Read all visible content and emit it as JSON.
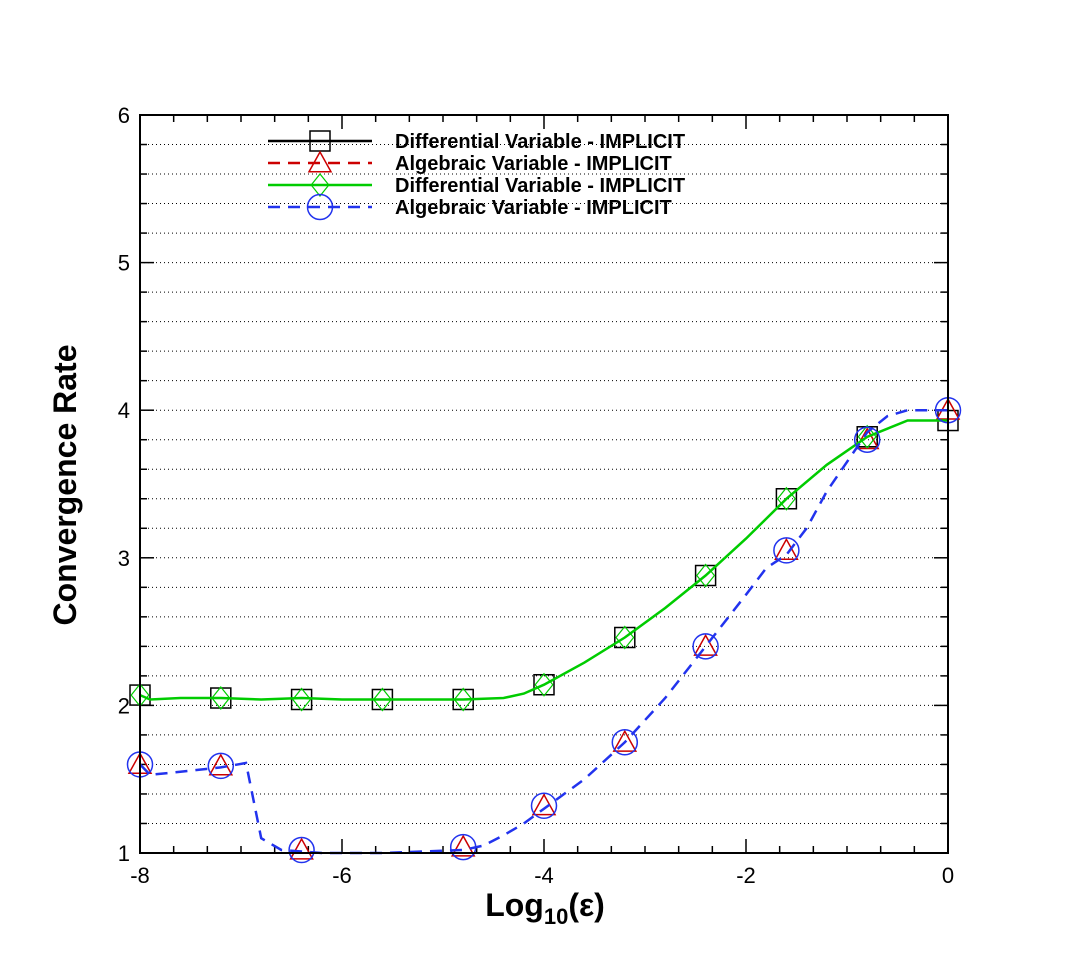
{
  "chart_data": {
    "type": "line",
    "xlabel": "Log",
    "xlabel_sub": "10",
    "xlabel_suffix": "(ε)",
    "ylabel": "Convergence Rate",
    "xlim": [
      -8,
      0
    ],
    "ylim": [
      1,
      6
    ],
    "x_major_ticks": [
      -8,
      -6,
      -4,
      -2,
      0
    ],
    "x_minor_step": 0.333333,
    "y_major_ticks": [
      1,
      2,
      3,
      4,
      5,
      6
    ],
    "y_minor_step": 0.2,
    "grid": "horizontal-dotted",
    "legend_position": "top-left",
    "series": [
      {
        "name": "Differential Variable - IMPLICIT",
        "color": "#000000",
        "dash": "solid",
        "marker": "square",
        "line": [],
        "markers": [
          [
            -8,
            2.07
          ],
          [
            -7.2,
            2.05
          ],
          [
            -6.4,
            2.04
          ],
          [
            -5.6,
            2.04
          ],
          [
            -4.8,
            2.04
          ],
          [
            -4,
            2.14
          ],
          [
            -3.2,
            2.46
          ],
          [
            -2.4,
            2.88
          ],
          [
            -1.6,
            3.4
          ],
          [
            -0.8,
            3.82
          ],
          [
            0,
            3.93
          ]
        ]
      },
      {
        "name": "Algebraic Variable - IMPLICIT",
        "color": "#cc0000",
        "dash": "dashed",
        "marker": "triangle",
        "line": [],
        "markers": [
          [
            -8,
            1.6
          ],
          [
            -7.2,
            1.59
          ],
          [
            -6.4,
            1.02
          ],
          [
            -4.8,
            1.04
          ],
          [
            -4,
            1.32
          ],
          [
            -3.2,
            1.75
          ],
          [
            -2.4,
            2.4
          ],
          [
            -1.6,
            3.05
          ],
          [
            -0.8,
            3.8
          ],
          [
            0,
            4
          ]
        ]
      },
      {
        "name": "Differential Variable - IMPLICIT",
        "color": "#00cc00",
        "dash": "solid",
        "marker": "diamond",
        "line": [
          [
            -8,
            2.07
          ],
          [
            -7.9,
            2.04
          ],
          [
            -7.6,
            2.05
          ],
          [
            -7.2,
            2.05
          ],
          [
            -6.8,
            2.04
          ],
          [
            -6.4,
            2.05
          ],
          [
            -6,
            2.04
          ],
          [
            -5.6,
            2.04
          ],
          [
            -5.2,
            2.04
          ],
          [
            -4.8,
            2.04
          ],
          [
            -4.4,
            2.05
          ],
          [
            -4.2,
            2.08
          ],
          [
            -4,
            2.14
          ],
          [
            -3.6,
            2.29
          ],
          [
            -3.2,
            2.46
          ],
          [
            -2.8,
            2.66
          ],
          [
            -2.4,
            2.88
          ],
          [
            -2,
            3.13
          ],
          [
            -1.6,
            3.4
          ],
          [
            -1.2,
            3.63
          ],
          [
            -0.8,
            3.82
          ],
          [
            -0.4,
            3.93
          ],
          [
            0,
            3.93
          ]
        ],
        "markers": [
          [
            -8,
            2.07
          ],
          [
            -7.2,
            2.05
          ],
          [
            -6.4,
            2.04
          ],
          [
            -5.6,
            2.04
          ],
          [
            -4.8,
            2.04
          ],
          [
            -4,
            2.14
          ],
          [
            -3.2,
            2.46
          ],
          [
            -2.4,
            2.88
          ],
          [
            -1.6,
            3.4
          ],
          [
            -0.8,
            3.82
          ]
        ]
      },
      {
        "name": "Algebraic Variable - IMPLICIT",
        "color": "#2233ee",
        "dash": "dashed",
        "marker": "circle",
        "line": [
          [
            -8,
            1.6
          ],
          [
            -7.9,
            1.53
          ],
          [
            -7.6,
            1.55
          ],
          [
            -7.2,
            1.58
          ],
          [
            -6.95,
            1.61
          ],
          [
            -6.8,
            1.1
          ],
          [
            -6.6,
            1.02
          ],
          [
            -6.4,
            1.01
          ],
          [
            -6.2,
            1.0
          ],
          [
            -5.6,
            1.0
          ],
          [
            -4.8,
            1.02
          ],
          [
            -4.6,
            1.05
          ],
          [
            -4.4,
            1.12
          ],
          [
            -4.2,
            1.2
          ],
          [
            -4,
            1.3
          ],
          [
            -3.6,
            1.5
          ],
          [
            -3.2,
            1.75
          ],
          [
            -2.8,
            2.05
          ],
          [
            -2.4,
            2.4
          ],
          [
            -2,
            2.75
          ],
          [
            -1.8,
            2.93
          ],
          [
            -1.6,
            3.02
          ],
          [
            -1.4,
            3.2
          ],
          [
            -1.2,
            3.45
          ],
          [
            -1,
            3.65
          ],
          [
            -0.8,
            3.85
          ],
          [
            -0.6,
            3.96
          ],
          [
            -0.4,
            4
          ],
          [
            0,
            4
          ]
        ],
        "markers": [
          [
            -8,
            1.6
          ],
          [
            -7.2,
            1.59
          ],
          [
            -6.4,
            1.02
          ],
          [
            -4.8,
            1.04
          ],
          [
            -4,
            1.32
          ],
          [
            -3.2,
            1.75
          ],
          [
            -2.4,
            2.4
          ],
          [
            -1.6,
            3.05
          ],
          [
            -0.8,
            3.8
          ],
          [
            0,
            4
          ]
        ]
      }
    ]
  }
}
